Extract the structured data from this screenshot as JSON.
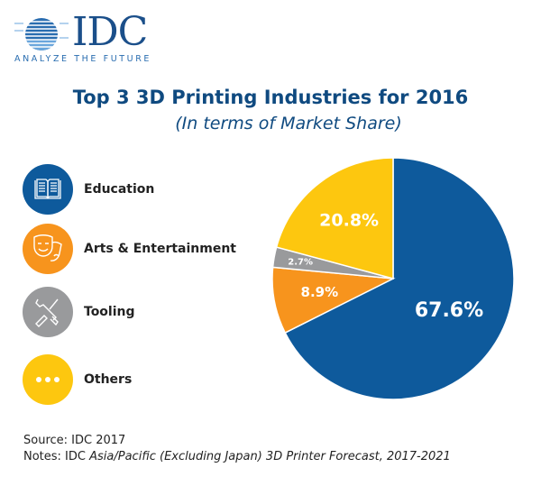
{
  "logo": {
    "text": "IDC",
    "tagline": "ANALYZE THE FUTURE"
  },
  "title": "Top 3 3D Printing Industries for 2016",
  "subtitle": "(In terms of Market Share)",
  "legend": [
    {
      "label": "Education",
      "icon": "book-icon",
      "color": "#0e5a9c"
    },
    {
      "label": "Arts & Entertainment",
      "icon": "theater-masks-icon",
      "color": "#f7941d"
    },
    {
      "label": "Tooling",
      "icon": "tools-icon",
      "color": "#999a9c"
    },
    {
      "label": "Others",
      "icon": "ellipsis-icon",
      "color": "#fdc70f"
    }
  ],
  "chart_data": {
    "type": "pie",
    "title": "Top 3 3D Printing Industries for 2016",
    "subtitle": "(In terms of Market Share)",
    "categories": [
      "Education",
      "Arts & Entertainment",
      "Tooling",
      "Others"
    ],
    "values": [
      67.6,
      8.9,
      2.7,
      20.8
    ],
    "labels": [
      "67.6%",
      "8.9%",
      "2.7%",
      "20.8%"
    ],
    "colors": [
      "#0e5a9c",
      "#f7941d",
      "#999a9c",
      "#fdc70f"
    ],
    "start": "top",
    "direction": "clockwise"
  },
  "source": "Source: IDC 2017",
  "notes_prefix": "Notes: IDC ",
  "notes_italic": "Asia/Pacific (Excluding Japan) 3D Printer Forecast, 2017-2021"
}
